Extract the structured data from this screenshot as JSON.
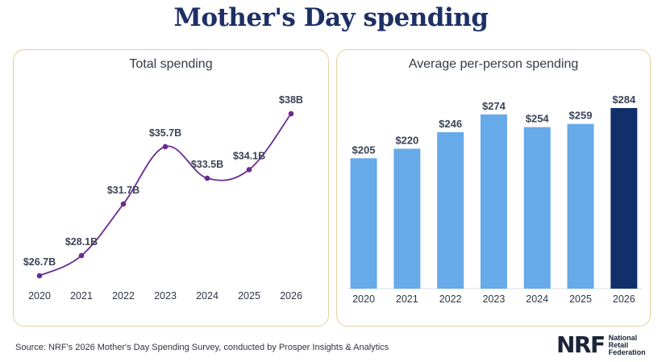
{
  "title": "Mother's Day spending",
  "source": "Source: NRF's 2026 Mother's Day Spending Survey, conducted by Prosper Insights & Analytics",
  "logo": {
    "mark": "NRF",
    "lines": [
      "National",
      "Retail",
      "Federation"
    ]
  },
  "colors": {
    "line": "#6a2c91",
    "bar": "#66aaea",
    "bar_highlight": "#11306b",
    "border": "#e3cf9c",
    "title": "#1d2f66"
  },
  "chart_data": [
    {
      "type": "line",
      "title": "Total spending",
      "categories": [
        "2020",
        "2021",
        "2022",
        "2023",
        "2024",
        "2025",
        "2026"
      ],
      "values": [
        26.7,
        28.1,
        31.7,
        35.7,
        33.5,
        34.1,
        38
      ],
      "labels": [
        "$26.7B",
        "$28.1B",
        "$31.7B",
        "$35.7B",
        "$33.5B",
        "$34.1B",
        "$38B"
      ],
      "unit": "billions USD",
      "ylim": [
        26.7,
        38
      ],
      "grid": false
    },
    {
      "type": "bar",
      "title": "Average per-person spending",
      "categories": [
        "2020",
        "2021",
        "2022",
        "2023",
        "2024",
        "2025",
        "2026"
      ],
      "values": [
        205,
        220,
        246,
        274,
        254,
        259,
        284
      ],
      "labels": [
        "$205",
        "$220",
        "$246",
        "$274",
        "$254",
        "$259",
        "$284"
      ],
      "highlight": "2026",
      "unit": "USD",
      "ylim": [
        0,
        284
      ],
      "grid": false
    }
  ]
}
